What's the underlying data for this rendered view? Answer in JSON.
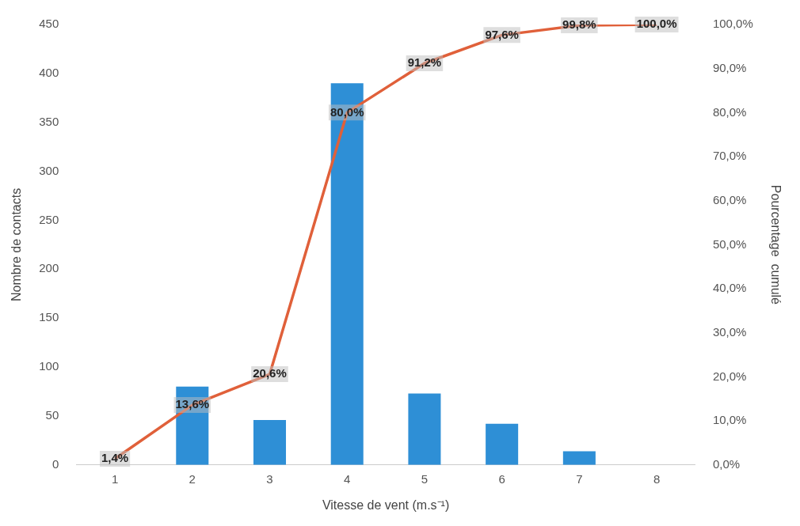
{
  "chart_data": {
    "type": "bar",
    "xlabel": "Vitesse de vent (m.s⁻¹)",
    "ylabel": "Nombre de contacts",
    "y2label": "Pourcentage  cumulé",
    "categories": [
      "1",
      "2",
      "3",
      "4",
      "5",
      "6",
      "7",
      "8"
    ],
    "series": [
      {
        "color": "#2e8fd6",
        "values": [
          null,
          80,
          46,
          390,
          73,
          42,
          14,
          null
        ]
      },
      {
        "type": "line",
        "axis": "y2",
        "color": "#e0603a",
        "values": [
          1.4,
          13.6,
          20.6,
          80.0,
          91.2,
          97.6,
          99.8,
          100.0
        ],
        "value_labels": [
          "1,4%",
          "13,6%",
          "20,6%",
          "80,0%",
          "91,2%",
          "97,6%",
          "99,8%",
          "100,0%"
        ]
      }
    ],
    "ylim": [
      0,
      450
    ],
    "yticks": [
      0,
      50,
      100,
      150,
      200,
      250,
      300,
      350,
      400,
      450
    ],
    "y2lim": [
      0,
      100
    ],
    "y2ticks": [
      {
        "value": 0,
        "label": "0,0%"
      },
      {
        "value": 10,
        "label": "10,0%"
      },
      {
        "value": 20,
        "label": "20,0%"
      },
      {
        "value": 30,
        "label": "30,0%"
      },
      {
        "value": 40,
        "label": "40,0%"
      },
      {
        "value": 50,
        "label": "50,0%"
      },
      {
        "value": 60,
        "label": "60,0%"
      },
      {
        "value": 70,
        "label": "70,0%"
      },
      {
        "value": 80,
        "label": "80,0%"
      },
      {
        "value": 90,
        "label": "90,0%"
      },
      {
        "value": 100,
        "label": "100,0%"
      }
    ],
    "grid": false,
    "legend": false,
    "marker": "none"
  }
}
